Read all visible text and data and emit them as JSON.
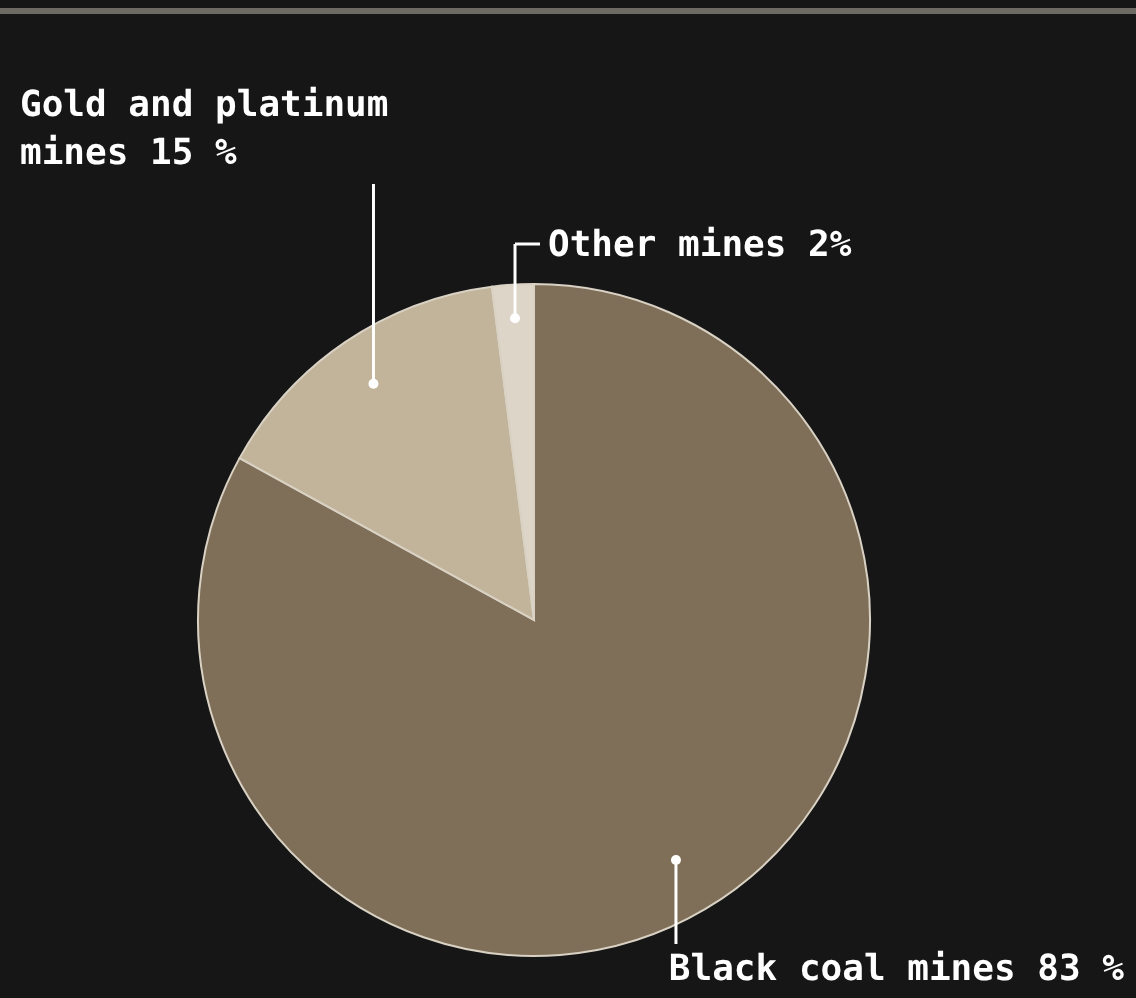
{
  "chart_data": {
    "type": "pie",
    "categories": [
      "Black coal mines",
      "Gold and platinum mines",
      "Other mines"
    ],
    "values": [
      83,
      15,
      2
    ],
    "colors": [
      "#7f6f58",
      "#c2b49a",
      "#ddd5c8"
    ],
    "value_labels": [
      "83 %",
      "15 %",
      "2%"
    ]
  }
}
